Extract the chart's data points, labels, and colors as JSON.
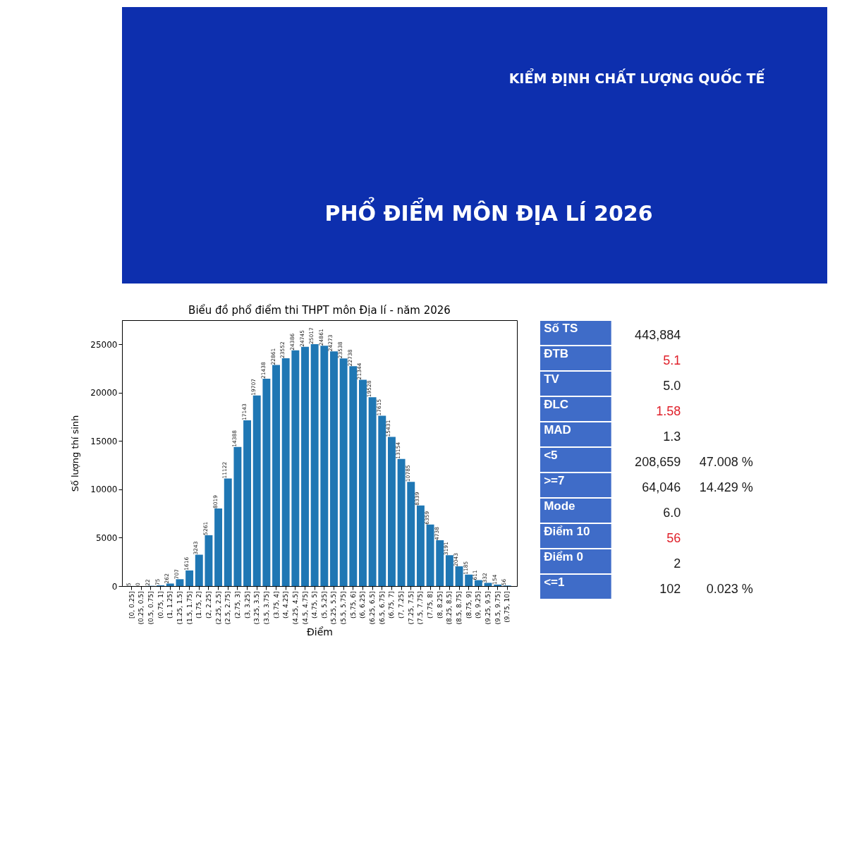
{
  "chart_data": [
    {
      "type": "other",
      "title": "PHỔ ĐIỂM MÔN ĐỊA LÍ 2026",
      "annotations": [
        "KIỂM ĐỊNH CHẤT LƯỢNG QUỐC TẾ"
      ]
    },
    {
      "type": "bar",
      "title": "Biểu đồ phổ điểm thi THPT môn Địa lí - năm 2026",
      "xlabel": "Điểm",
      "ylabel": "Số lượng thí sinh",
      "categories": [
        "[0, 0.25]",
        "(0.25, 0.5]",
        "(0.5, 0.75]",
        "(0.75, 1]",
        "(1, 1.25]",
        "(1.25, 1.5]",
        "(1.5, 1.75]",
        "(1.75, 2]",
        "(2, 2.25]",
        "(2.25, 2.5]",
        "(2.5, 2.75]",
        "(2.75, 3]",
        "(3, 3.25]",
        "(3.25, 3.5]",
        "(3.5, 3.75]",
        "(3.75, 4]",
        "(4, 4.25]",
        "(4.25, 4.5]",
        "(4.5, 4.75]",
        "(4.75, 5]",
        "(5, 5.25]",
        "(5.25, 5.5]",
        "(5.5, 5.75]",
        "(5.75, 6]",
        "(6, 6.25]",
        "(6.25, 6.5]",
        "(6.5, 6.75]",
        "(6.75, 7]",
        "(7, 7.25]",
        "(7.25, 7.5]",
        "(7.5, 7.75]",
        "(7.75, 8]",
        "(8, 8.25]",
        "(8.25, 8.5]",
        "(8.5, 8.75]",
        "(8.75, 9]",
        "(9, 9.25]",
        "(9.25, 9.5]",
        "(9.5, 9.75]",
        "(9.75, 10]"
      ],
      "values": [
        5,
        0,
        22,
        75,
        262,
        707,
        1616,
        3243,
        5261,
        8019,
        11122,
        14388,
        17143,
        19707,
        21438,
        22861,
        23552,
        24386,
        24745,
        25017,
        24861,
        24273,
        23538,
        22738,
        21344,
        19528,
        17615,
        15431,
        13154,
        10785,
        8339,
        6359,
        4738,
        3191,
        2043,
        1185,
        611,
        332,
        154,
        56
      ],
      "color": "#1f77b4",
      "ylim": [
        0,
        27500
      ],
      "yticks": [
        0,
        5000,
        10000,
        15000,
        20000,
        25000
      ],
      "data_labels": true
    },
    {
      "type": "other",
      "categories": [
        "Số TS",
        "ĐTB",
        "TV",
        "ĐLC",
        "MAD",
        "<5",
        ">=7",
        "Mode",
        "Điểm 10",
        "Điểm 0",
        "<=1"
      ],
      "series": [
        {
          "values": [
            443884,
            5.1,
            5.0,
            1.58,
            1.3,
            208659,
            64046,
            6.0,
            56,
            2,
            102
          ],
          "value_labels": [
            "443,884",
            "5.1",
            "5.0",
            "1.58",
            "1.3",
            "208,659",
            "64,046",
            "6.0",
            "56",
            "2",
            "102"
          ],
          "colors": [
            "#1a1a1a",
            "#e0202a",
            "#1a1a1a",
            "#e0202a",
            "#1a1a1a",
            "#1a1a1a",
            "#1a1a1a",
            "#1a1a1a",
            "#e0202a",
            "#1a1a1a",
            "#1a1a1a"
          ]
        },
        {
          "values": [
            null,
            null,
            null,
            null,
            null,
            47.008,
            14.429,
            null,
            null,
            null,
            0.023
          ],
          "value_labels": [
            null,
            null,
            null,
            null,
            null,
            "47.008 %",
            "14.429 %",
            null,
            null,
            null,
            "0.023 %"
          ],
          "color": "#1a1a1a"
        }
      ]
    }
  ]
}
